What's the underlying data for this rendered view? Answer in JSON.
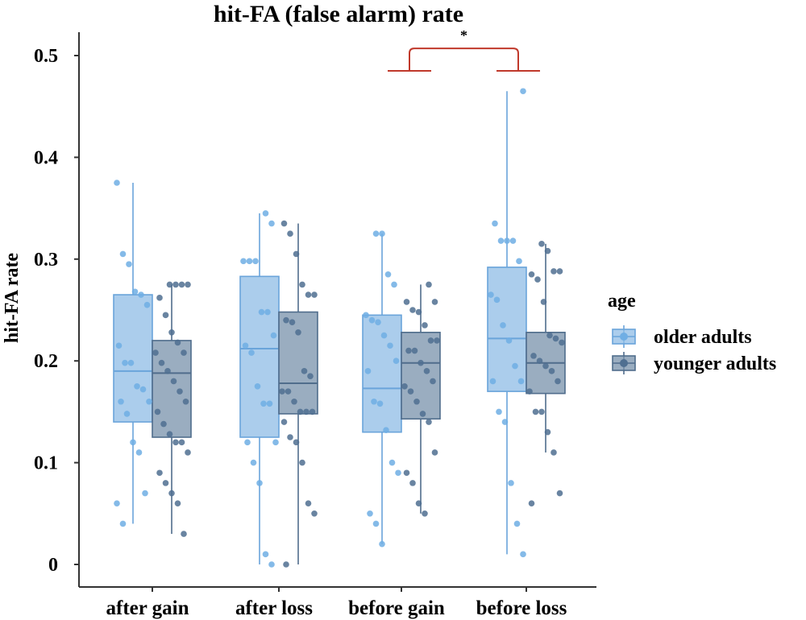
{
  "chart_data": {
    "type": "box",
    "title": "hit-FA (false alarm) rate",
    "xlabel": "",
    "ylabel": "hit-FA rate",
    "ylim": [
      -0.005,
      0.52
    ],
    "yticks": [
      0,
      0.1,
      0.2,
      0.3,
      0.4,
      0.5
    ],
    "ytick_labels": [
      "0",
      "0.1",
      "0.2",
      "0.3",
      "0.4",
      "0.5"
    ],
    "categories": [
      "after gain",
      "after loss",
      "before gain",
      "before loss"
    ],
    "legend": {
      "title": "age",
      "position": "right"
    },
    "series": [
      {
        "name": "older adults",
        "color": "#8fbce6",
        "edge": "#6aa4da",
        "point": "#6faee4",
        "boxes": [
          {
            "min": 0.04,
            "q1": 0.14,
            "median": 0.19,
            "q3": 0.265,
            "max": 0.375
          },
          {
            "min": 0.0,
            "q1": 0.125,
            "median": 0.212,
            "q3": 0.283,
            "max": 0.345
          },
          {
            "min": 0.02,
            "q1": 0.13,
            "median": 0.173,
            "q3": 0.245,
            "max": 0.325
          },
          {
            "min": 0.01,
            "q1": 0.17,
            "median": 0.222,
            "q3": 0.292,
            "max": 0.465
          }
        ],
        "points": [
          [
            0.375,
            0.305,
            0.295,
            0.268,
            0.265,
            0.255,
            0.215,
            0.198,
            0.198,
            0.175,
            0.172,
            0.16,
            0.16,
            0.148,
            0.12,
            0.11,
            0.07,
            0.06,
            0.04
          ],
          [
            0.345,
            0.335,
            0.298,
            0.298,
            0.298,
            0.248,
            0.248,
            0.225,
            0.215,
            0.208,
            0.175,
            0.158,
            0.158,
            0.12,
            0.12,
            0.1,
            0.08,
            0.01,
            0.0
          ],
          [
            0.325,
            0.325,
            0.285,
            0.275,
            0.245,
            0.24,
            0.238,
            0.225,
            0.215,
            0.2,
            0.19,
            0.16,
            0.158,
            0.132,
            0.1,
            0.09,
            0.05,
            0.04,
            0.02
          ],
          [
            0.465,
            0.335,
            0.318,
            0.318,
            0.318,
            0.298,
            0.265,
            0.26,
            0.235,
            0.22,
            0.195,
            0.18,
            0.18,
            0.15,
            0.14,
            0.08,
            0.04,
            0.01
          ]
        ]
      },
      {
        "name": "younger adults",
        "color": "#7891ab",
        "edge": "#506d8c",
        "point": "#4f6f91",
        "boxes": [
          {
            "min": 0.03,
            "q1": 0.125,
            "median": 0.188,
            "q3": 0.22,
            "max": 0.275
          },
          {
            "min": 0.0,
            "q1": 0.148,
            "median": 0.178,
            "q3": 0.248,
            "max": 0.335
          },
          {
            "min": 0.05,
            "q1": 0.143,
            "median": 0.198,
            "q3": 0.228,
            "max": 0.275
          },
          {
            "min": 0.11,
            "q1": 0.168,
            "median": 0.198,
            "q3": 0.228,
            "max": 0.315
          }
        ],
        "points": [
          [
            0.275,
            0.275,
            0.275,
            0.275,
            0.262,
            0.245,
            0.228,
            0.218,
            0.208,
            0.208,
            0.198,
            0.19,
            0.18,
            0.17,
            0.16,
            0.15,
            0.138,
            0.128,
            0.12,
            0.12,
            0.11,
            0.09,
            0.08,
            0.07,
            0.06,
            0.03
          ],
          [
            0.335,
            0.325,
            0.305,
            0.275,
            0.265,
            0.265,
            0.24,
            0.238,
            0.228,
            0.19,
            0.185,
            0.17,
            0.17,
            0.16,
            0.15,
            0.15,
            0.15,
            0.14,
            0.125,
            0.12,
            0.1,
            0.06,
            0.05,
            0.0
          ],
          [
            0.275,
            0.258,
            0.258,
            0.25,
            0.248,
            0.235,
            0.22,
            0.22,
            0.21,
            0.21,
            0.198,
            0.19,
            0.18,
            0.175,
            0.17,
            0.16,
            0.148,
            0.14,
            0.11,
            0.09,
            0.08,
            0.06,
            0.05
          ],
          [
            0.315,
            0.308,
            0.288,
            0.288,
            0.285,
            0.28,
            0.258,
            0.225,
            0.222,
            0.218,
            0.205,
            0.2,
            0.195,
            0.19,
            0.18,
            0.17,
            0.15,
            0.15,
            0.13,
            0.11,
            0.07,
            0.06
          ]
        ]
      }
    ],
    "annotations": [
      {
        "type": "significance",
        "label": "*",
        "between": [
          "before gain",
          "before loss"
        ],
        "color": "#c0392b"
      }
    ]
  }
}
